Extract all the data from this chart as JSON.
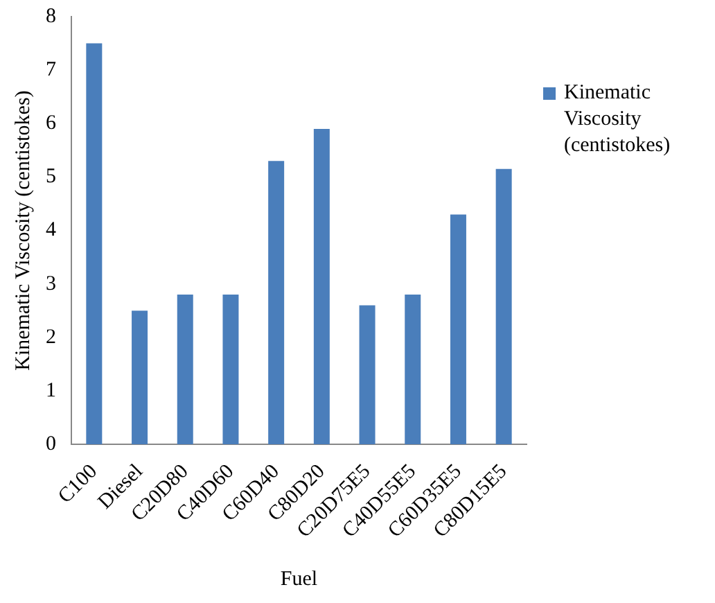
{
  "chart_data": {
    "type": "bar",
    "xlabel": "Fuel",
    "ylabel": "Kinematic Viscosity (centistokes)",
    "categories": [
      "C100",
      "Diesel",
      "C20D80",
      "C40D60",
      "C60D40",
      "C80D20",
      "C20D75E5",
      "C40D55E5",
      "C60D35E5",
      "C80D15E5"
    ],
    "series": [
      {
        "name": "Kinematic Viscosity (centistokes)",
        "color": "#4a7ebb",
        "values": [
          7.5,
          2.5,
          2.8,
          2.8,
          5.3,
          5.9,
          2.6,
          2.8,
          4.3,
          5.15
        ]
      }
    ],
    "ylim": [
      0,
      8
    ],
    "yticks": [
      0,
      1,
      2,
      3,
      4,
      5,
      6,
      7,
      8
    ],
    "grid": false,
    "legend": "right"
  }
}
